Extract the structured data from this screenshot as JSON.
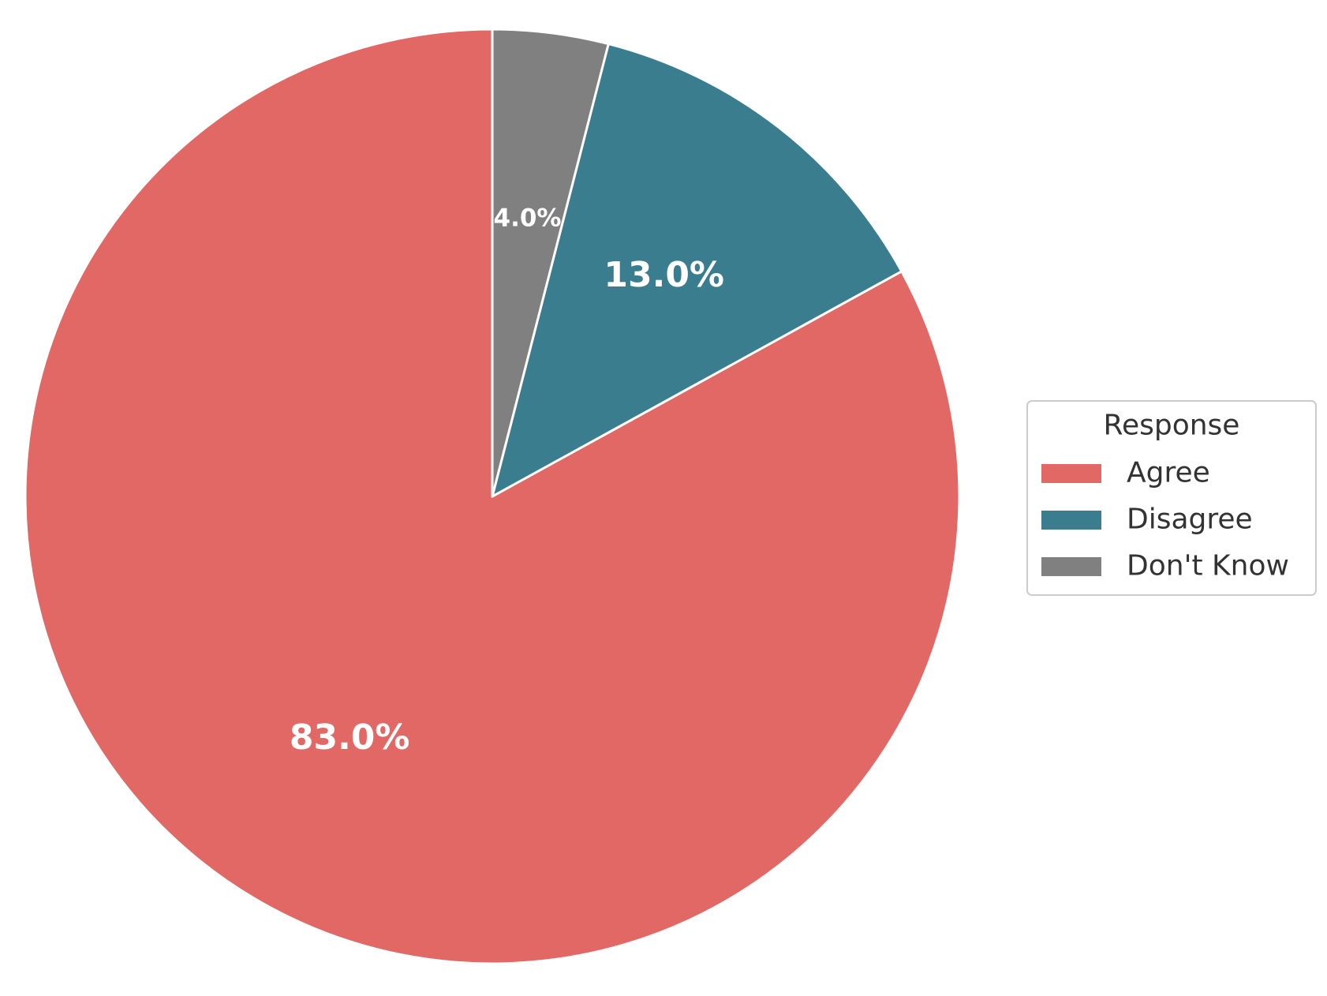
{
  "chart_data": {
    "type": "pie",
    "labels": [
      "Agree",
      "Disagree",
      "Don't Know"
    ],
    "values": [
      83.0,
      13.0,
      4.0
    ],
    "value_labels": [
      "83.0%",
      "13.0%",
      "4.0%"
    ],
    "colors": [
      "#E16864",
      "#3A7D8E",
      "#808080"
    ],
    "start_angle_deg": 90,
    "direction": "clockwise",
    "legend": {
      "title": "Response",
      "placement": "right"
    }
  }
}
